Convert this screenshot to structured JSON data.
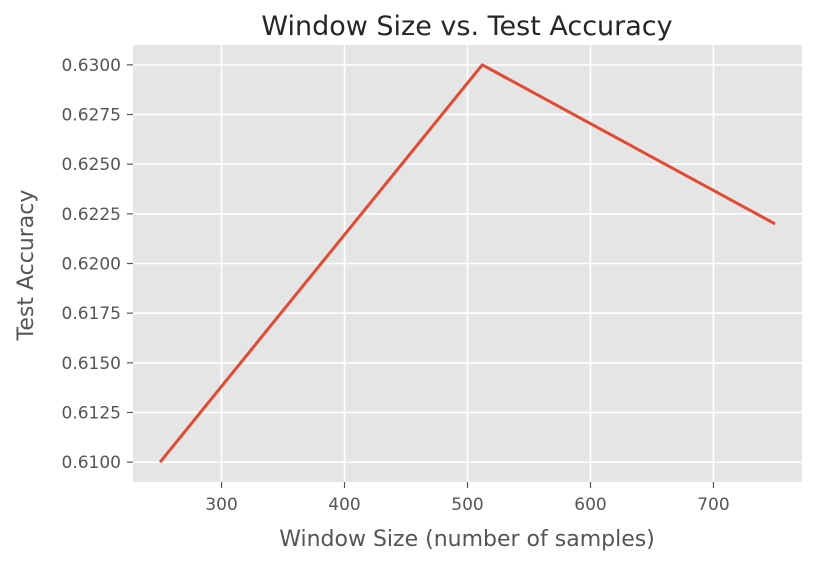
{
  "chart_data": {
    "type": "line",
    "title": "Window Size vs. Test Accuracy",
    "xlabel": "Window Size (number of samples)",
    "ylabel": "Test Accuracy",
    "x": [
      250,
      512,
      750
    ],
    "series": [
      {
        "values": [
          0.61,
          0.63,
          0.622
        ],
        "color": "#E24A33"
      }
    ],
    "xlim": [
      228,
      772
    ],
    "ylim": [
      0.609,
      0.631
    ],
    "xticks": [
      300,
      400,
      500,
      600,
      700
    ],
    "xtick_labels": [
      "300",
      "400",
      "500",
      "600",
      "700"
    ],
    "yticks": [
      0.61,
      0.6125,
      0.615,
      0.6175,
      0.62,
      0.6225,
      0.625,
      0.6275,
      0.63
    ],
    "ytick_labels": [
      "0.6100",
      "0.6125",
      "0.6150",
      "0.6175",
      "0.6200",
      "0.6225",
      "0.6250",
      "0.6275",
      "0.6300"
    ],
    "grid": true,
    "style": "ggplot",
    "background_color": "#E5E5E5",
    "grid_color": "#FFFFFF"
  }
}
